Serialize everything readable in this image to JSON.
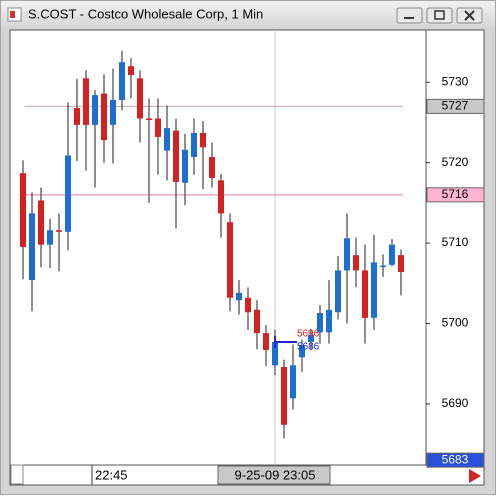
{
  "chart_data": {
    "type": "candlestick",
    "title": "S.COST - Costco Wholesale Corp, 1 Min",
    "categories": [
      null,
      null,
      null,
      null,
      null,
      null,
      null,
      null,
      "22:45",
      null,
      null,
      null,
      null,
      null,
      null,
      null,
      null,
      null,
      null,
      null,
      null,
      null,
      null,
      null,
      null,
      null,
      null,
      null,
      "9-25-09 23:05",
      null,
      null,
      null,
      null,
      null,
      null,
      null,
      null,
      null,
      null,
      null,
      null,
      null,
      null
    ],
    "open": [
      5718.7,
      5705.4,
      5715.3,
      5709.8,
      5711.6,
      5711.4,
      5726.8,
      5730.5,
      5724.7,
      5728.6,
      5724.7,
      5727.8,
      5732.0,
      5730.5,
      5725.5,
      5725.5,
      5721.5,
      5724.0,
      5717.5,
      5720.7,
      5723.7,
      5720.7,
      5717.8,
      5712.6,
      5702.9,
      5703.2,
      5701.7,
      5698.8,
      5694.8,
      5694.6,
      5690.7,
      5695.8,
      5697.7,
      5698.9,
      5698.9,
      5701.4,
      5706.6,
      5708.5,
      5706.6,
      5700.7,
      5707.1,
      5707.3,
      5708.5
    ],
    "high": [
      5720.3,
      5716.3,
      5716.9,
      5713.0,
      5713.7,
      5727.5,
      5730.4,
      5731.5,
      5729.0,
      5731.0,
      5731.7,
      5733.9,
      5733.0,
      5731.5,
      5728.0,
      5728.0,
      5727.1,
      5725.5,
      5723.6,
      5725.5,
      5725.2,
      5722.5,
      5718.6,
      5713.7,
      5705.4,
      5704.5,
      5702.9,
      5699.8,
      5699.2,
      5695.5,
      5697.4,
      5698.0,
      5699.3,
      5702.3,
      5705.4,
      5708.4,
      5713.7,
      5710.7,
      5709.8,
      5711.0,
      5708.6,
      5710.5,
      5709.2
    ],
    "low": [
      5705.5,
      5701.5,
      5707.0,
      5706.9,
      5706.5,
      5709.1,
      5720.2,
      5719.0,
      5716.9,
      5720.0,
      5719.9,
      5726.5,
      5728.0,
      5722.5,
      5715.0,
      5718.5,
      5717.8,
      5711.8,
      5714.7,
      5718.5,
      5716.7,
      5716.9,
      5710.7,
      5701.5,
      5701.1,
      5699.2,
      5696.8,
      5694.7,
      5693.6,
      5685.7,
      5689.3,
      5694.0,
      5696.7,
      5697.5,
      5697.5,
      5700.5,
      5700.0,
      5704.5,
      5697.5,
      5699.2,
      5705.8,
      5707.1,
      5703.5
    ],
    "close": [
      5709.5,
      5713.7,
      5709.8,
      5711.6,
      5711.4,
      5720.9,
      5724.7,
      5724.7,
      5728.4,
      5722.8,
      5727.8,
      5732.5,
      5730.9,
      5725.5,
      5725.3,
      5723.2,
      5724.3,
      5717.6,
      5721.6,
      5723.7,
      5721.9,
      5718.1,
      5713.7,
      5703.2,
      5703.8,
      5701.4,
      5698.8,
      5696.7,
      5697.7,
      5687.4,
      5694.8,
      5697.3,
      5698.6,
      5701.3,
      5701.7,
      5706.6,
      5710.6,
      5706.6,
      5700.7,
      5707.6,
      5707.2,
      5709.8,
      5706.4
    ],
    "up_color": "#1c6fd0",
    "down_color": "#d42222",
    "ylim": [
      5682.4,
      5736.5
    ],
    "yticks": [
      5690,
      5700,
      5710,
      5720,
      5730
    ],
    "levels": [
      {
        "value": 5727,
        "label": "5727",
        "color": "#c8a8a8",
        "box": "#c8c8c8"
      },
      {
        "value": 5716,
        "label": "5716",
        "color": "#f07aa0",
        "box": "#ffb4d2"
      },
      {
        "value": 5683,
        "label": "5683",
        "color": null,
        "box": "#2850d8"
      }
    ],
    "cursor": {
      "index": 28,
      "texts": [
        "5696",
        "5686"
      ]
    }
  }
}
